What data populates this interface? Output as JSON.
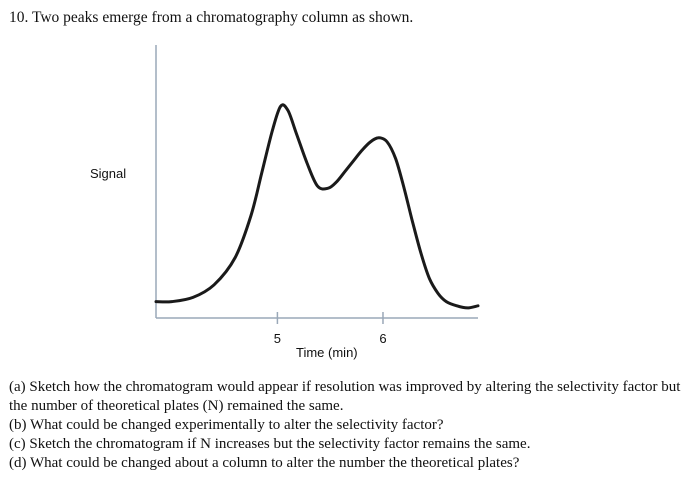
{
  "question": {
    "title": "10.  Two peaks emerge from a chromatography column as shown."
  },
  "chart_data": {
    "type": "line",
    "ylabel": "Signal",
    "xlabel": "Time (min)",
    "x_ticks": [
      5,
      6
    ],
    "xlim": [
      3.85,
      6.9
    ],
    "ylim": [
      0,
      1
    ],
    "grid": false,
    "series": [
      {
        "x": [
          3.85,
          4.0,
          4.2,
          4.4,
          4.6,
          4.75,
          4.85,
          4.95,
          5.03,
          5.1,
          5.18,
          5.28,
          5.38,
          5.48,
          5.56,
          5.64,
          5.72,
          5.8,
          5.88,
          5.96,
          6.04,
          6.12,
          6.2,
          6.28,
          6.36,
          6.44,
          6.52,
          6.6,
          6.7,
          6.8,
          6.9
        ],
        "y": [
          0.04,
          0.04,
          0.06,
          0.12,
          0.25,
          0.45,
          0.65,
          0.85,
          0.97,
          0.95,
          0.84,
          0.7,
          0.59,
          0.58,
          0.61,
          0.66,
          0.71,
          0.76,
          0.8,
          0.82,
          0.8,
          0.72,
          0.58,
          0.42,
          0.27,
          0.15,
          0.08,
          0.04,
          0.02,
          0.01,
          0.02
        ]
      }
    ]
  },
  "parts": [
    "(a) Sketch how the chromatogram would appear if resolution was improved by altering the selectivity factor but the number of theoretical plates (N) remained the same.",
    "(b) What could be changed experimentally to alter the selectivity factor?",
    "(c)  Sketch the chromatogram if N increases but the selectivity factor remains the same.",
    "(d) What could be changed about a column to alter the number the theoretical plates?"
  ]
}
